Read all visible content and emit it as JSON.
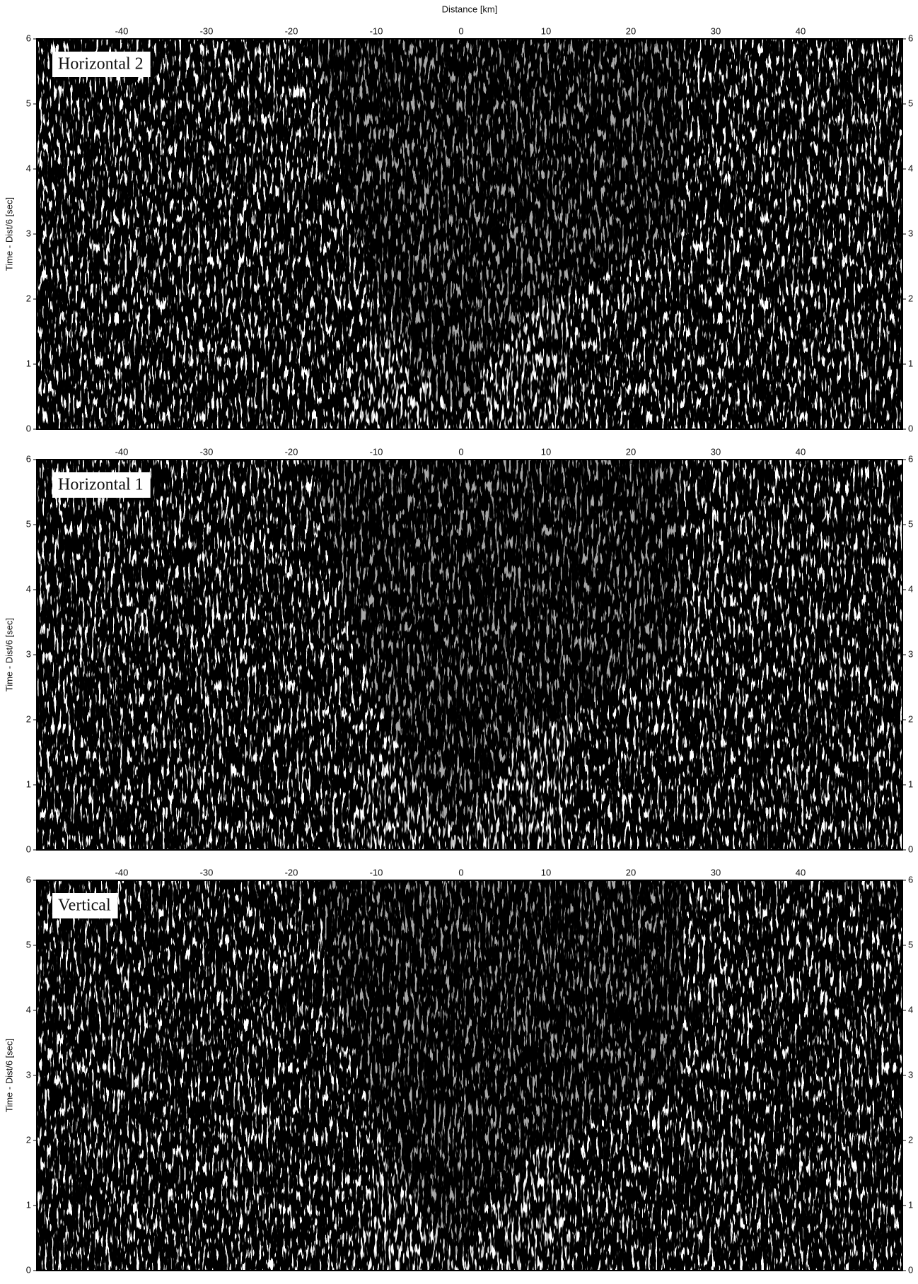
{
  "chart_data": [
    {
      "type": "seismic-section",
      "x_label": "Distance [km]",
      "y_label": "Time - Dist/6 [sec]",
      "panel_label": "Horizontal 2",
      "xlim": [
        -50,
        52
      ],
      "ylim": [
        0,
        6
      ],
      "xticks": [
        -40,
        -30,
        -20,
        -10,
        0,
        10,
        20,
        30,
        40
      ],
      "yticks": [
        0,
        1,
        2,
        3,
        4,
        5,
        6
      ]
    },
    {
      "type": "seismic-section",
      "y_label": "Time - Dist/6 [sec]",
      "panel_label": "Horizontal 1",
      "xlim": [
        -50,
        52
      ],
      "ylim": [
        0,
        6
      ],
      "xticks": [
        -40,
        -30,
        -20,
        -10,
        0,
        10,
        20,
        30,
        40
      ],
      "yticks": [
        0,
        1,
        2,
        3,
        4,
        5,
        6
      ]
    },
    {
      "type": "seismic-section",
      "y_label": "Time - Dist/6 [sec]",
      "panel_label": "Vertical",
      "xlim": [
        -50,
        52
      ],
      "ylim": [
        0,
        6
      ],
      "xticks": [
        -40,
        -30,
        -20,
        -10,
        0,
        10,
        20,
        30,
        40
      ],
      "yticks": [
        0,
        1,
        2,
        3,
        4,
        5,
        6
      ]
    }
  ]
}
